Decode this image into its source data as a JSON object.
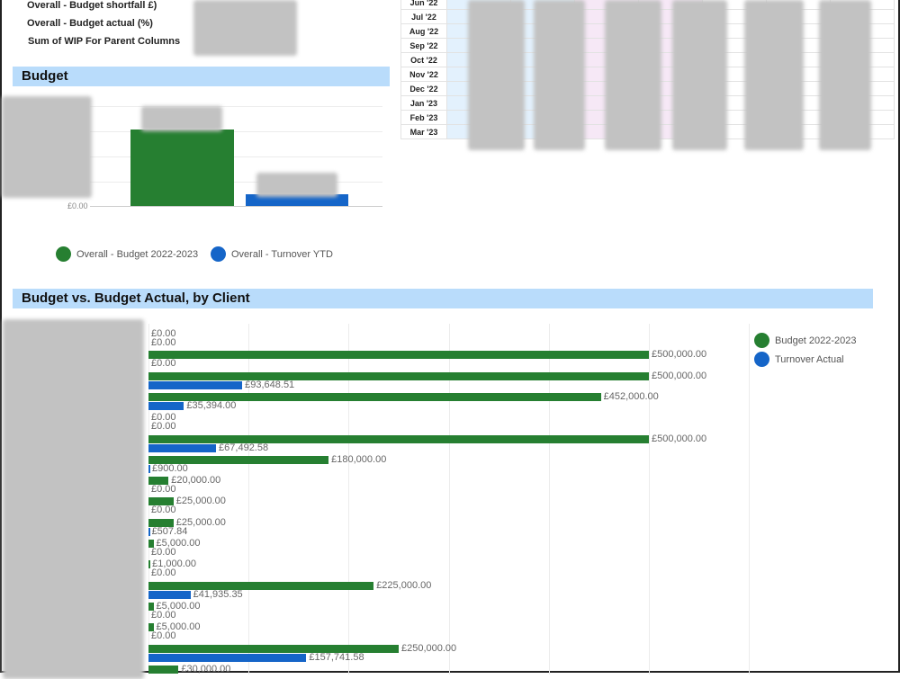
{
  "summary": {
    "rows": [
      "Overall - Budget shortfall £)",
      "Overall - Budget actual (%)",
      "Sum of WIP For Parent Columns"
    ]
  },
  "monthly_table": {
    "months": [
      "Jun '22",
      "Jul '22",
      "Aug '22",
      "Sep '22",
      "Oct '22",
      "Nov '22",
      "Dec '22",
      "Jan '23",
      "Feb '23",
      "Mar '23"
    ]
  },
  "budget_section": {
    "title": "Budget",
    "chart_data": {
      "type": "bar",
      "y_tick_labels": [
        "£0.00"
      ],
      "series": [
        {
          "name": "Overall - Budget 2022-2023",
          "color": "#267f31"
        },
        {
          "name": "Overall - Turnover YTD",
          "color": "#1565c8"
        }
      ],
      "grid": true,
      "legend": "bottom"
    }
  },
  "client_section": {
    "title": "Budget vs. Budget Actual, by Client",
    "chart_data": {
      "type": "bar",
      "orientation": "horizontal",
      "grid": true,
      "legend": "right",
      "series": [
        {
          "name": "Budget 2022-2023",
          "color": "#267f31",
          "values": [
            0,
            500000,
            500000,
            452000,
            0,
            500000,
            180000,
            20000,
            25000,
            25000,
            5000,
            1000,
            225000,
            5000,
            5000,
            250000,
            30000
          ]
        },
        {
          "name": "Turnover Actual",
          "color": "#1565c8",
          "values": [
            0,
            0,
            93648.51,
            35394,
            0,
            67492.58,
            900,
            0,
            0,
            507.84,
            0,
            0,
            41935.35,
            0,
            0,
            157741.58,
            null
          ]
        }
      ]
    }
  }
}
